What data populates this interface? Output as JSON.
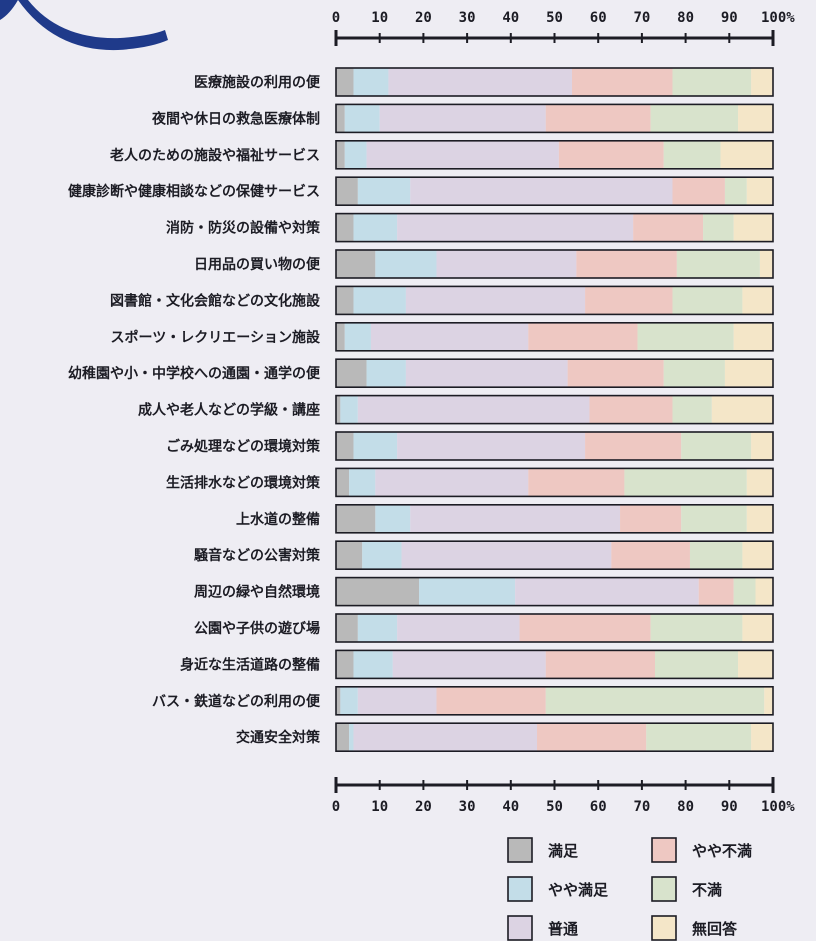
{
  "chart_data": {
    "type": "bar",
    "orientation": "horizontal",
    "stacked": true,
    "xlim": [
      0,
      100
    ],
    "x_ticks": [
      "0",
      "10",
      "20",
      "30",
      "40",
      "50",
      "60",
      "70",
      "80",
      "90",
      "100%"
    ],
    "categories": [
      "医療施設の利用の便",
      "夜間や休日の救急医療体制",
      "老人のための施設や福祉サービス",
      "健康診断や健康相談などの保健サービス",
      "消防・防災の設備や対策",
      "日用品の買い物の便",
      "図書館・文化会館などの文化施設",
      "スポーツ・レクリエーション施設",
      "幼稚園や小・中学校への通園・通学の便",
      "成人や老人などの学級・講座",
      "ごみ処理などの環境対策",
      "生活排水などの環境対策",
      "上水道の整備",
      "騒音などの公害対策",
      "周辺の緑や自然環境",
      "公園や子供の遊び場",
      "身近な生活道路の整備",
      "バス・鉄道などの利用の便",
      "交通安全対策"
    ],
    "series": [
      {
        "name": "満足",
        "color": "#b9b9b9",
        "values": [
          4,
          2,
          2,
          5,
          4,
          9,
          4,
          2,
          7,
          1,
          4,
          3,
          9,
          6,
          19,
          5,
          4,
          1,
          3
        ]
      },
      {
        "name": "やや満足",
        "color": "#c3dde8",
        "values": [
          8,
          8,
          5,
          12,
          10,
          14,
          12,
          6,
          9,
          4,
          10,
          6,
          8,
          9,
          22,
          9,
          9,
          4,
          1
        ]
      },
      {
        "name": "普通",
        "color": "#dcd3e3",
        "values": [
          42,
          38,
          44,
          60,
          54,
          32,
          41,
          36,
          37,
          53,
          43,
          35,
          48,
          48,
          42,
          28,
          35,
          18,
          42
        ]
      },
      {
        "name": "やや不満",
        "color": "#eec8c2",
        "values": [
          23,
          24,
          24,
          12,
          16,
          23,
          20,
          25,
          22,
          19,
          22,
          22,
          14,
          18,
          8,
          30,
          25,
          25,
          25
        ]
      },
      {
        "name": "不満",
        "color": "#d8e3cc",
        "values": [
          18,
          20,
          13,
          5,
          7,
          19,
          16,
          22,
          14,
          9,
          16,
          28,
          15,
          12,
          5,
          21,
          19,
          50,
          24
        ]
      },
      {
        "name": "無回答",
        "color": "#f4e6c8",
        "values": [
          5,
          8,
          12,
          6,
          9,
          3,
          7,
          9,
          11,
          14,
          5,
          6,
          6,
          7,
          4,
          7,
          8,
          2,
          5
        ]
      }
    ],
    "legend": "bottom-right"
  }
}
